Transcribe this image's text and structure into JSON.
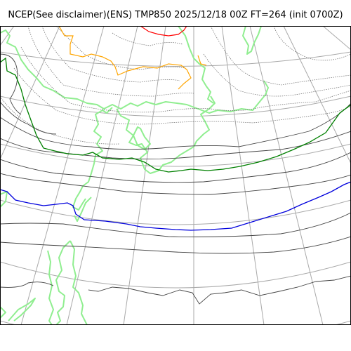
{
  "title": "NCEP(See disclaimer)(ENS) TMP850 2025/12/18 00Z FT=264 (init 0700Z)",
  "colors": {
    "background": "#ffffff",
    "frame": "#000000",
    "graticule": "#a9a9a9",
    "coastline": "#90ee90",
    "isotherm": "#444444",
    "isotherm_minus": "#777777",
    "contour_0c": "#0000dd",
    "contour_minus12c": "#008000",
    "contour_minus24c": "#ffa500",
    "contour_minus36c": "#ff0000"
  }
}
